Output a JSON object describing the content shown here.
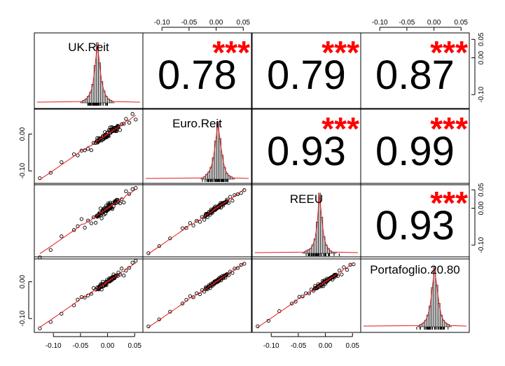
{
  "chart_data": {
    "type": "scatter-matrix",
    "title": "",
    "variables": [
      "UK.Reit",
      "Euro.Reit",
      "REEU",
      "Portafoglio.20.80"
    ],
    "axis": {
      "range": [
        -0.13,
        0.06
      ],
      "ticks": [
        -0.1,
        -0.05,
        0.0,
        0.05
      ],
      "tick_labels": [
        "-0.10",
        "-0.05",
        "0.00",
        "0.05"
      ],
      "y_ticks": [
        -0.1,
        0.0
      ],
      "y_tick_labels": [
        "-0.10",
        "0.00"
      ]
    },
    "correlations": [
      {
        "row": 0,
        "col": 1,
        "value": "0.78",
        "stars": "***"
      },
      {
        "row": 0,
        "col": 2,
        "value": "0.79",
        "stars": "***"
      },
      {
        "row": 0,
        "col": 3,
        "value": "0.87",
        "stars": "***"
      },
      {
        "row": 1,
        "col": 2,
        "value": "0.93",
        "stars": "***"
      },
      {
        "row": 1,
        "col": 3,
        "value": "0.99",
        "stars": "***"
      },
      {
        "row": 2,
        "col": 3,
        "value": "0.93",
        "stars": "***"
      }
    ],
    "histogram_bins": [
      -0.0175,
      -0.015,
      -0.0125,
      -0.01,
      -0.0075,
      -0.005,
      -0.0025,
      0.0,
      0.0025,
      0.005,
      0.0075,
      0.01,
      0.0125,
      0.015,
      0.0175
    ],
    "histograms": [
      {
        "variable": "UK.Reit",
        "counts": [
          1,
          2,
          3,
          5,
          8,
          14,
          28,
          45,
          30,
          16,
          9,
          5,
          3,
          2,
          1
        ]
      },
      {
        "variable": "Euro.Reit",
        "counts": [
          1,
          2,
          4,
          6,
          10,
          18,
          32,
          48,
          34,
          20,
          10,
          5,
          3,
          2,
          1
        ]
      },
      {
        "variable": "REEU",
        "counts": [
          1,
          2,
          3,
          4,
          7,
          12,
          26,
          50,
          30,
          14,
          7,
          4,
          2,
          1,
          1
        ]
      },
      {
        "variable": "Portafoglio.20.80",
        "counts": [
          1,
          2,
          3,
          5,
          9,
          16,
          30,
          46,
          32,
          18,
          9,
          5,
          3,
          2,
          1
        ]
      }
    ],
    "scatter_points": [
      {
        "u": -0.125,
        "v": -0.122
      },
      {
        "u": -0.105,
        "v": -0.103
      },
      {
        "u": -0.085,
        "v": -0.082
      },
      {
        "u": -0.062,
        "v": -0.058
      },
      {
        "u": -0.055,
        "v": -0.05
      },
      {
        "u": -0.048,
        "v": -0.039
      },
      {
        "u": -0.042,
        "v": -0.043
      },
      {
        "u": -0.036,
        "v": -0.031
      },
      {
        "u": -0.03,
        "v": -0.034
      },
      {
        "u": -0.026,
        "v": -0.022
      },
      {
        "u": -0.022,
        "v": -0.028
      },
      {
        "u": -0.019,
        "v": -0.014
      },
      {
        "u": -0.016,
        "v": -0.021
      },
      {
        "u": -0.013,
        "v": -0.009
      },
      {
        "u": -0.011,
        "v": -0.016
      },
      {
        "u": -0.009,
        "v": -0.006
      },
      {
        "u": -0.007,
        "v": -0.012
      },
      {
        "u": -0.005,
        "v": -0.002
      },
      {
        "u": -0.004,
        "v": -0.008
      },
      {
        "u": -0.003,
        "v": 0.001
      },
      {
        "u": -0.002,
        "v": -0.004
      },
      {
        "u": -0.001,
        "v": 0.003
      },
      {
        "u": 0.0,
        "v": -0.002
      },
      {
        "u": 0.001,
        "v": 0.004
      },
      {
        "u": 0.002,
        "v": -0.001
      },
      {
        "u": 0.003,
        "v": 0.006
      },
      {
        "u": 0.004,
        "v": 0.001
      },
      {
        "u": 0.005,
        "v": 0.008
      },
      {
        "u": 0.006,
        "v": 0.003
      },
      {
        "u": 0.008,
        "v": 0.011
      },
      {
        "u": 0.009,
        "v": 0.005
      },
      {
        "u": 0.011,
        "v": 0.014
      },
      {
        "u": 0.013,
        "v": 0.008
      },
      {
        "u": 0.015,
        "v": 0.018
      },
      {
        "u": 0.017,
        "v": 0.012
      },
      {
        "u": 0.02,
        "v": 0.022
      },
      {
        "u": 0.023,
        "v": 0.017
      },
      {
        "u": 0.026,
        "v": 0.029
      },
      {
        "u": 0.03,
        "v": 0.024
      },
      {
        "u": 0.034,
        "v": 0.036
      },
      {
        "u": 0.04,
        "v": 0.036
      },
      {
        "u": 0.046,
        "v": 0.045
      },
      {
        "u": 0.052,
        "v": 0.05
      }
    ],
    "noise_levels": [
      {
        "row": 1,
        "col": 0,
        "noise": 0.9
      },
      {
        "row": 2,
        "col": 0,
        "noise": 1.0
      },
      {
        "row": 2,
        "col": 1,
        "noise": 0.35
      },
      {
        "row": 3,
        "col": 0,
        "noise": 0.6
      },
      {
        "row": 3,
        "col": 1,
        "noise": 0.12
      },
      {
        "row": 3,
        "col": 2,
        "noise": 0.35
      }
    ],
    "axes_placement": {
      "top": [
        1,
        3
      ],
      "bottom": [
        0,
        2
      ],
      "left": [
        1,
        3
      ],
      "right": [
        0,
        2
      ]
    },
    "colors": {
      "points": "#000000",
      "smooth_line": "#e31a1c",
      "density_line": "#e31a1c",
      "stars": "#ff0000",
      "hist_fill": "#bfbfbf",
      "frame": "#000000"
    }
  }
}
